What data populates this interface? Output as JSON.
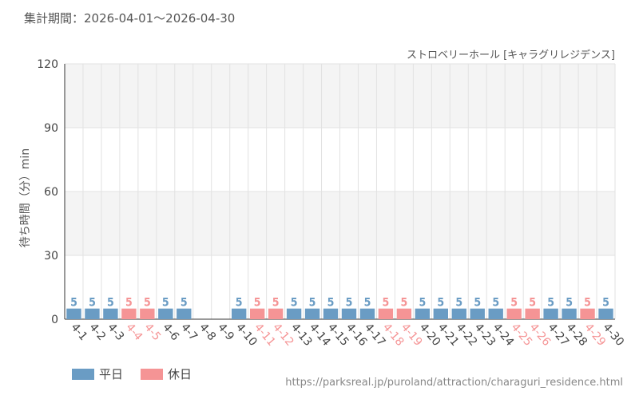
{
  "period_label": "集計期間：2026-04-01～2026-04-30",
  "attraction": "ストロベリーホール [キャラグリレジデンス]",
  "source_url": "https://parksreal.jp/puroland/attraction/charaguri_residence.html",
  "legend": {
    "weekday": "平日",
    "holiday": "休日"
  },
  "colors": {
    "weekday": "#6a9cc4",
    "holiday": "#f59495",
    "band": "#f4f4f4",
    "grid": "#e2e2e2",
    "axis": "#333333"
  },
  "chart_data": {
    "type": "bar",
    "title": "",
    "xlabel": "",
    "ylabel": "待ち時間（分）min",
    "ylim": [
      0,
      120
    ],
    "yticks": [
      0,
      30,
      60,
      90,
      120
    ],
    "grid": true,
    "legend_position": "bottom-left",
    "categories": [
      "4-1",
      "4-2",
      "4-3",
      "4-4",
      "4-5",
      "4-6",
      "4-7",
      "4-8",
      "4-9",
      "4-10",
      "4-11",
      "4-12",
      "4-13",
      "4-14",
      "4-15",
      "4-16",
      "4-17",
      "4-18",
      "4-19",
      "4-20",
      "4-21",
      "4-22",
      "4-23",
      "4-24",
      "4-25",
      "4-26",
      "4-27",
      "4-28",
      "4-29",
      "4-30"
    ],
    "values": [
      5,
      5,
      5,
      5,
      5,
      5,
      5,
      null,
      null,
      5,
      5,
      5,
      5,
      5,
      5,
      5,
      5,
      5,
      5,
      5,
      5,
      5,
      5,
      5,
      5,
      5,
      5,
      5,
      5,
      5
    ],
    "day_type": [
      "weekday",
      "weekday",
      "weekday",
      "holiday",
      "holiday",
      "weekday",
      "weekday",
      "weekday",
      "weekday",
      "weekday",
      "holiday",
      "holiday",
      "weekday",
      "weekday",
      "weekday",
      "weekday",
      "weekday",
      "holiday",
      "holiday",
      "weekday",
      "weekday",
      "weekday",
      "weekday",
      "weekday",
      "holiday",
      "holiday",
      "weekday",
      "weekday",
      "holiday",
      "weekday"
    ]
  }
}
